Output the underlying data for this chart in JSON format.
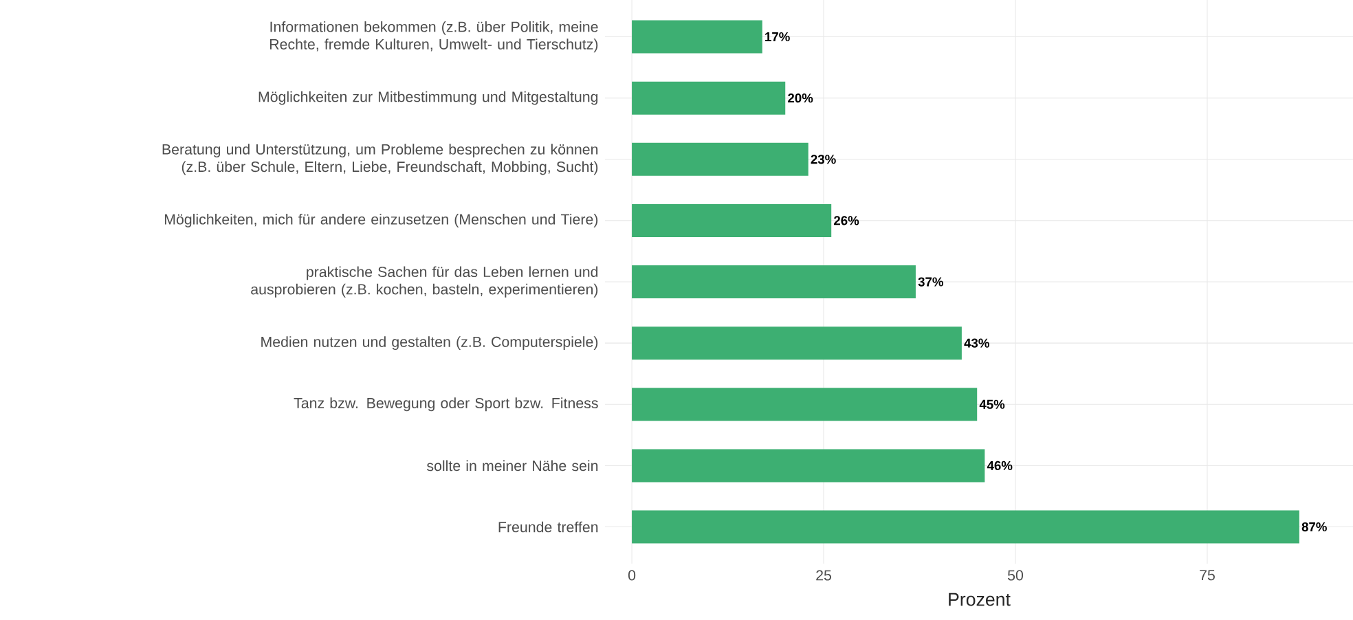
{
  "chart_data": {
    "type": "bar",
    "orientation": "horizontal",
    "xlabel": "Prozent",
    "categories": [
      "Informationen bekommen (z.B. über Politik, meine Rechte, fremde Kulturen, Umwelt- und Tierschutz)",
      "Möglichkeiten zur Mitbestimmung und Mitgestaltung",
      "Beratung und Unterstützung, um Probleme besprechen zu können (z.B. über Schule, Eltern, Liebe, Freundschaft, Mobbing, Sucht)",
      "Möglichkeiten, mich für andere einzusetzen (Menschen und Tiere)",
      "praktische Sachen für das Leben lernen und ausprobieren (z.B. kochen, basteln, experimentieren)",
      "Medien nutzen und gestalten (z.B. Computerspiele)",
      "Tanz bzw. Bewegung oder Sport bzw. Fitness",
      "sollte in meiner Nähe sein",
      "Freunde treffen"
    ],
    "values": [
      17,
      20,
      23,
      26,
      37,
      43,
      45,
      46,
      87
    ],
    "value_labels": [
      "17%",
      "20%",
      "23%",
      "26%",
      "37%",
      "43%",
      "45%",
      "46%",
      "87%"
    ],
    "color": "#3daf72",
    "xlim": [
      -3.5,
      94
    ],
    "xticks": [
      0,
      25,
      50,
      75
    ],
    "grid": true
  }
}
